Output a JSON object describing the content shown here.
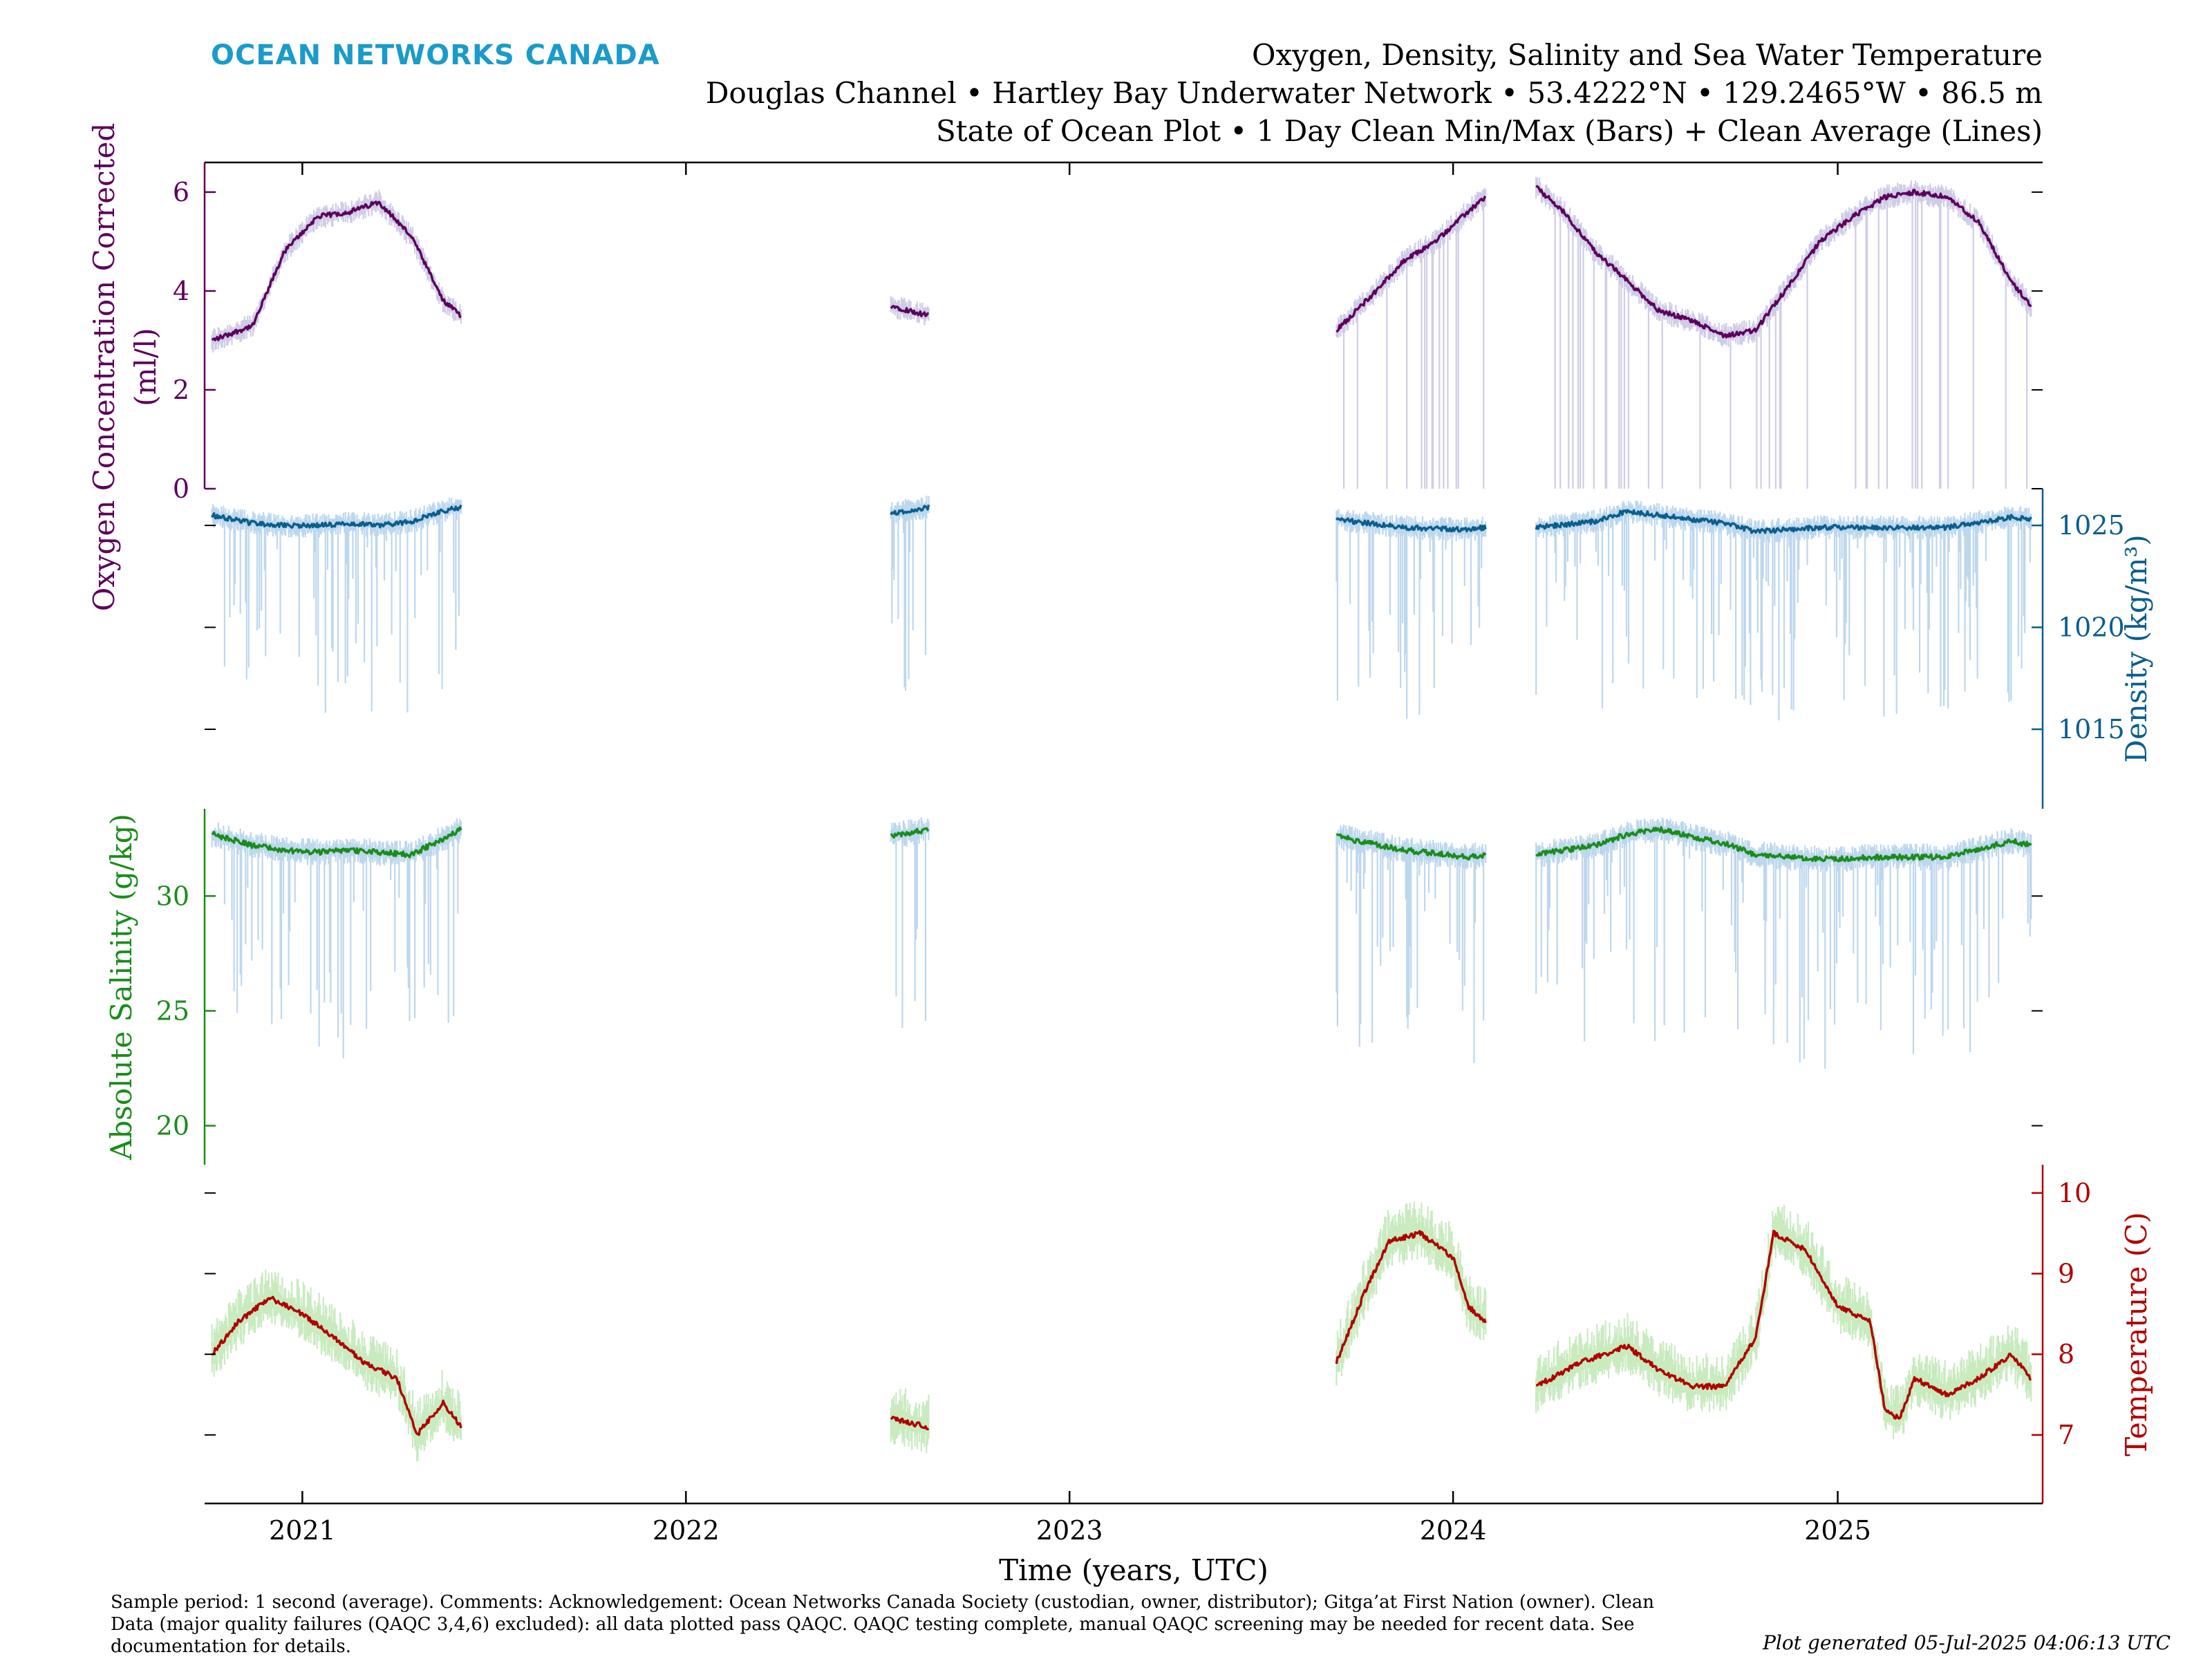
{
  "brand": "OCEAN NETWORKS CANADA",
  "title_lines": [
    "Oxygen, Density, Salinity and Sea Water Temperature",
    "Douglas Channel • Hartley Bay Underwater Network • 53.4222°N • 129.2465°W • 86.5 m",
    "State of Ocean Plot • 1 Day Clean Min/Max (Bars) + Clean Average (Lines)"
  ],
  "footer": {
    "comment_lines": [
      "Sample period: 1 second (average). Comments: Acknowledgement: Ocean Networks Canada Society (custodian, owner, distributor); Gitga’at First Nation (owner). Clean",
      "Data (major quality failures (QAQC 3,4,6) excluded): all data plotted pass QAQC. QAQC testing complete, manual QAQC screening may be needed for recent data. See",
      "documentation for details."
    ],
    "generated": "Plot generated 05-Jul-2025 04:06:13 UTC"
  },
  "colors": {
    "oxygen": "#5c005c",
    "oxygen_band": "#cfcde6",
    "density": "#0a5e8c",
    "density_band": "#bdd7ee",
    "salinity": "#1a8c1a",
    "salinity_band": "#bdd7ee",
    "temperature": "#b00000",
    "temperature_band": "#c8ebbf",
    "brand": "#1a9bc9"
  },
  "chart_data": {
    "type": "line",
    "xlabel": "Time (years, UTC)",
    "x_ticks": [
      "2021",
      "2022",
      "2023",
      "2024",
      "2025"
    ],
    "xlim": [
      "2020-09-30",
      "2025-07-15"
    ],
    "segments": [
      [
        "2020-10-07",
        "2021-06-01"
      ],
      [
        "2022-07-15",
        "2022-08-20"
      ],
      [
        "2023-09-12",
        "2024-02-01"
      ],
      [
        "2024-03-20",
        "2025-07-04"
      ]
    ],
    "panels": [
      {
        "name": "oxygen",
        "ylabel_lines": [
          "Oxygen Concentration Corrected",
          "(ml/l)"
        ],
        "ylim": [
          0,
          6.6
        ],
        "yticks": [
          "0",
          "2",
          "4",
          "6"
        ],
        "axis_side": "left",
        "series": {
          "dates": [
            "2020-10-07",
            "2020-11-15",
            "2020-12-15",
            "2021-01-15",
            "2021-02-15",
            "2021-03-15",
            "2021-04-15",
            "2021-05-15",
            "2021-06-01",
            "2022-07-15",
            "2022-08-20",
            "2023-09-12",
            "2023-10-15",
            "2023-11-15",
            "2023-12-15",
            "2024-01-15",
            "2024-02-01",
            "2024-03-20",
            "2024-04-15",
            "2024-05-15",
            "2024-06-15",
            "2024-07-15",
            "2024-08-15",
            "2024-09-15",
            "2024-10-15",
            "2024-11-15",
            "2024-12-15",
            "2025-01-15",
            "2025-02-15",
            "2025-03-15",
            "2025-04-15",
            "2025-05-15",
            "2025-06-15",
            "2025-07-04"
          ],
          "values": [
            3.0,
            3.3,
            4.8,
            5.5,
            5.6,
            5.8,
            5.1,
            3.8,
            3.5,
            3.7,
            3.5,
            3.2,
            3.9,
            4.6,
            5.0,
            5.6,
            5.9,
            6.1,
            5.6,
            4.8,
            4.2,
            3.6,
            3.4,
            3.1,
            3.2,
            4.1,
            5.0,
            5.5,
            5.9,
            6.0,
            5.9,
            5.4,
            4.2,
            3.7
          ]
        }
      },
      {
        "name": "density",
        "ylabel": "Density (kg/m³)",
        "ylim": [
          1011.1,
          1026.8
        ],
        "yticks": [
          "1015",
          "1020",
          "1025"
        ],
        "axis_side": "right",
        "series": {
          "dates": [
            "2020-10-07",
            "2020-11-15",
            "2020-12-15",
            "2021-01-15",
            "2021-02-15",
            "2021-03-15",
            "2021-04-15",
            "2021-05-15",
            "2021-06-01",
            "2022-07-15",
            "2022-08-20",
            "2023-09-12",
            "2023-11-15",
            "2024-01-15",
            "2024-02-01",
            "2024-03-20",
            "2024-05-15",
            "2024-06-15",
            "2024-07-15",
            "2024-09-15",
            "2024-10-15",
            "2024-12-15",
            "2025-02-15",
            "2025-04-15",
            "2025-06-15",
            "2025-07-04"
          ],
          "values": [
            1025.5,
            1025.1,
            1025.0,
            1025.0,
            1025.1,
            1025.0,
            1025.2,
            1025.7,
            1025.9,
            1025.6,
            1025.9,
            1025.3,
            1024.9,
            1024.8,
            1024.9,
            1024.9,
            1025.2,
            1025.7,
            1025.5,
            1025.1,
            1024.7,
            1024.9,
            1024.9,
            1024.9,
            1025.4,
            1025.3
          ]
        }
      },
      {
        "name": "salinity",
        "ylabel": "Absolute Salinity (g/kg)",
        "ylim": [
          18.3,
          33.8
        ],
        "yticks": [
          "20",
          "25",
          "30"
        ],
        "axis_side": "left",
        "series": {
          "dates": [
            "2020-10-07",
            "2020-11-15",
            "2020-12-15",
            "2021-01-15",
            "2021-02-15",
            "2021-03-15",
            "2021-04-15",
            "2021-05-15",
            "2021-06-01",
            "2022-07-15",
            "2022-08-20",
            "2023-09-12",
            "2023-11-15",
            "2024-01-15",
            "2024-02-01",
            "2024-03-20",
            "2024-05-15",
            "2024-06-15",
            "2024-07-15",
            "2024-09-15",
            "2024-10-15",
            "2024-12-15",
            "2025-02-15",
            "2025-04-15",
            "2025-06-15",
            "2025-07-04"
          ],
          "values": [
            32.7,
            32.2,
            32.0,
            31.9,
            32.0,
            31.9,
            31.8,
            32.5,
            32.9,
            32.6,
            32.9,
            32.6,
            32.0,
            31.7,
            31.8,
            31.8,
            32.2,
            32.7,
            32.9,
            32.3,
            31.8,
            31.6,
            31.7,
            31.7,
            32.4,
            32.2
          ]
        }
      },
      {
        "name": "temperature",
        "ylabel": "Temperature (C)",
        "ylim": [
          6.15,
          10.35
        ],
        "yticks": [
          "7",
          "8",
          "9",
          "10"
        ],
        "axis_side": "right",
        "series": {
          "dates": [
            "2020-10-07",
            "2020-11-01",
            "2020-12-01",
            "2021-01-01",
            "2021-02-01",
            "2021-03-01",
            "2021-04-01",
            "2021-04-20",
            "2021-05-15",
            "2021-06-01",
            "2022-07-15",
            "2022-08-20",
            "2023-09-12",
            "2023-10-10",
            "2023-11-01",
            "2023-12-01",
            "2024-01-01",
            "2024-01-15",
            "2024-02-01",
            "2024-03-20",
            "2024-05-01",
            "2024-06-15",
            "2024-07-15",
            "2024-08-15",
            "2024-09-15",
            "2024-10-15",
            "2024-11-01",
            "2024-12-01",
            "2025-01-01",
            "2025-02-01",
            "2025-02-15",
            "2025-03-01",
            "2025-03-15",
            "2025-04-15",
            "2025-05-15",
            "2025-06-15",
            "2025-07-04"
          ],
          "values": [
            8.0,
            8.4,
            8.7,
            8.5,
            8.2,
            7.9,
            7.7,
            7.0,
            7.4,
            7.1,
            7.2,
            7.1,
            7.9,
            8.8,
            9.4,
            9.5,
            9.2,
            8.6,
            8.4,
            7.6,
            7.9,
            8.1,
            7.8,
            7.6,
            7.6,
            8.2,
            9.5,
            9.3,
            8.6,
            8.4,
            7.3,
            7.2,
            7.7,
            7.5,
            7.7,
            8.0,
            7.7
          ]
        }
      }
    ]
  }
}
